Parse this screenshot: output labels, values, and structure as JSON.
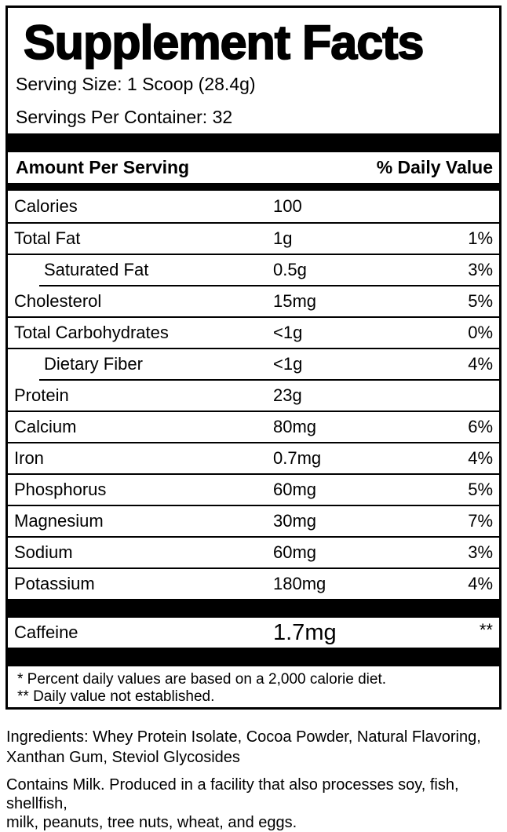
{
  "title": "Supplement Facts",
  "serving": {
    "size_label": "Serving Size: 1 Scoop (28.4g)",
    "per_container_label": "Servings Per Container: 32"
  },
  "table": {
    "header": {
      "amount": "Amount Per Serving",
      "daily_value": "% Daily Value"
    },
    "rows": [
      {
        "name": "Calories",
        "amount": "100",
        "dv": "",
        "indent": false,
        "sep": "none"
      },
      {
        "name": "Total Fat",
        "amount": "1g",
        "dv": "1%",
        "indent": false,
        "sep": "full"
      },
      {
        "name": "Saturated Fat",
        "amount": "0.5g",
        "dv": "3%",
        "indent": true,
        "sep": "full"
      },
      {
        "name": "Cholesterol",
        "amount": "15mg",
        "dv": "5%",
        "indent": false,
        "sep": "indent"
      },
      {
        "name": "Total Carbohydrates",
        "amount": "<1g",
        "dv": "0%",
        "indent": false,
        "sep": "full"
      },
      {
        "name": "Dietary Fiber",
        "amount": "<1g",
        "dv": "4%",
        "indent": true,
        "sep": "full"
      },
      {
        "name": "Protein",
        "amount": "23g",
        "dv": "",
        "indent": false,
        "sep": "indent"
      },
      {
        "name": "Calcium",
        "amount": "80mg",
        "dv": "6%",
        "indent": false,
        "sep": "full"
      },
      {
        "name": "Iron",
        "amount": "0.7mg",
        "dv": "4%",
        "indent": false,
        "sep": "full"
      },
      {
        "name": "Phosphorus",
        "amount": "60mg",
        "dv": "5%",
        "indent": false,
        "sep": "full"
      },
      {
        "name": "Magnesium",
        "amount": "30mg",
        "dv": "7%",
        "indent": false,
        "sep": "full"
      },
      {
        "name": "Sodium",
        "amount": "60mg",
        "dv": "3%",
        "indent": false,
        "sep": "full"
      },
      {
        "name": "Potassium",
        "amount": "180mg",
        "dv": "4%",
        "indent": false,
        "sep": "full"
      }
    ],
    "caffeine": {
      "name": "Caffeine",
      "amount": "1.7mg",
      "dv": "**"
    }
  },
  "footnotes": [
    "* Percent daily values are based on a 2,000 calorie diet.",
    "** Daily value not established."
  ],
  "ingredients": {
    "lines": [
      "Ingredients: Whey Protein Isolate, Cocoa Powder, Natural Flavoring,",
      "Xanthan Gum, Steviol Glycosides"
    ]
  },
  "allergen": {
    "lines": [
      "Contains Milk. Produced in a facility that also processes soy, fish, shellfish,",
      "milk, peanuts, tree nuts, wheat, and eggs."
    ]
  },
  "colors": {
    "text": "#000000",
    "background": "#ffffff",
    "bar": "#000000"
  }
}
